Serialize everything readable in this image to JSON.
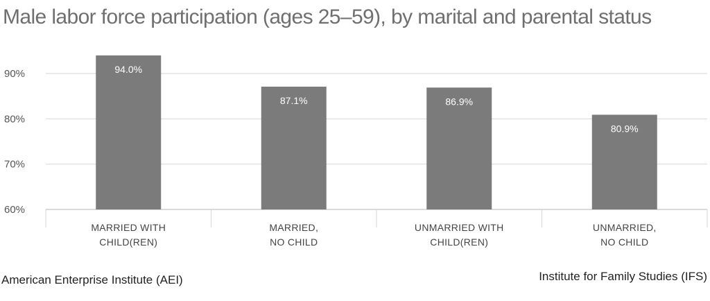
{
  "chart_data": {
    "type": "bar",
    "title": "Male labor force participation (ages 25–59), by marital and parental status",
    "categories": [
      [
        "MARRIED WITH",
        "CHILD(REN)"
      ],
      [
        "MARRIED,",
        "NO CHILD"
      ],
      [
        "UNMARRIED WITH",
        "CHILD(REN)"
      ],
      [
        "UNMARRIED,",
        "NO CHILD"
      ]
    ],
    "values": [
      94.0,
      87.1,
      86.9,
      80.9
    ],
    "data_labels": [
      "94.0%",
      "87.1%",
      "86.9%",
      "80.9%"
    ],
    "ylim": [
      60,
      96
    ],
    "yticks": [
      60,
      70,
      80,
      90
    ],
    "ytick_labels": [
      "60%",
      "70%",
      "80%",
      "90%"
    ],
    "grid": true,
    "bar_color": "#7b7b7b",
    "legend": "none"
  },
  "footer": {
    "left": "American Enterprise Institute (AEI)",
    "right": "Institute for Family Studies (IFS)"
  }
}
